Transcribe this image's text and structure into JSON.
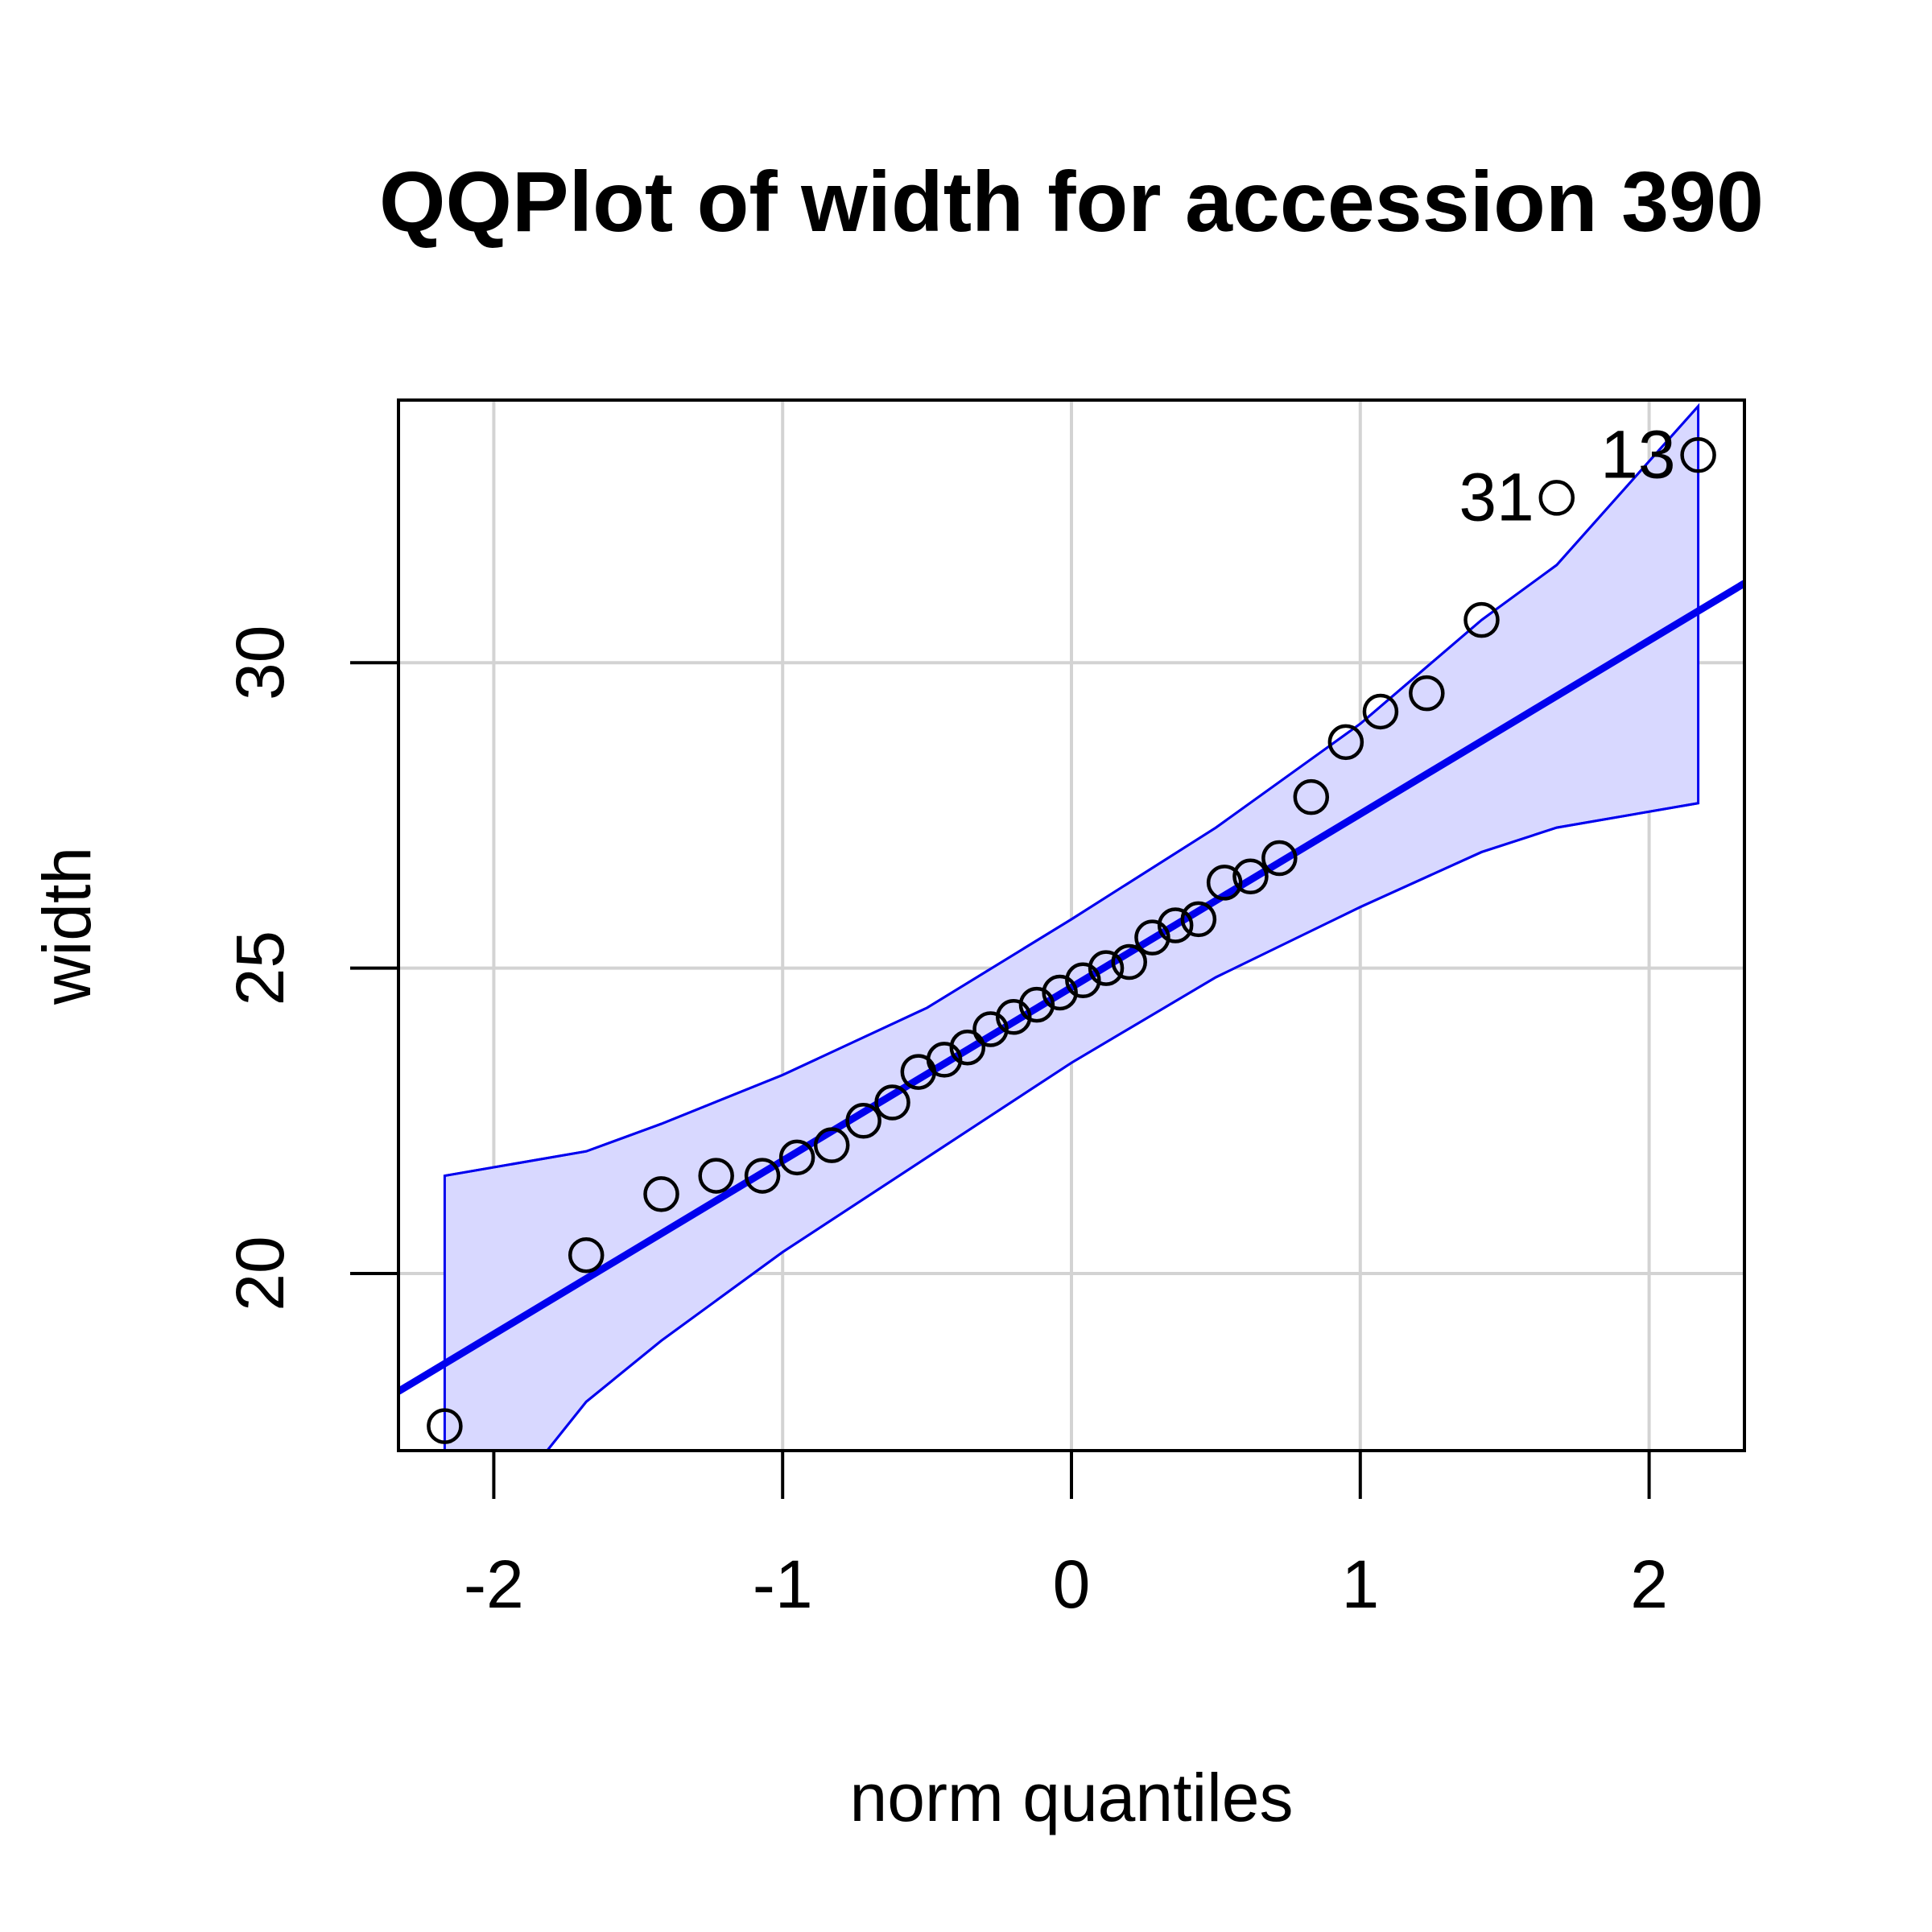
{
  "chart_data": {
    "type": "scatter",
    "title": "QQPlot of width for accession 390",
    "xlabel": "norm quantiles",
    "ylabel": "width",
    "xlim": [
      -2.33,
      2.33
    ],
    "ylim": [
      17.1,
      34.3
    ],
    "x_ticks": [
      -2,
      -1,
      0,
      1,
      2
    ],
    "y_ticks": [
      20,
      25,
      30
    ],
    "grid": true,
    "colors": {
      "points": "#000000",
      "reference_line": "#0000ee",
      "envelope_fill": "#d8d8ff",
      "envelope_line": "#0000ee",
      "grid": "#d3d3d3"
    },
    "points": [
      {
        "x": -2.17,
        "y": 17.5
      },
      {
        "x": -1.68,
        "y": 20.3
      },
      {
        "x": -1.42,
        "y": 21.3
      },
      {
        "x": -1.23,
        "y": 21.6
      },
      {
        "x": -1.07,
        "y": 21.6
      },
      {
        "x": -0.95,
        "y": 21.9
      },
      {
        "x": -0.83,
        "y": 22.1
      },
      {
        "x": -0.72,
        "y": 22.5
      },
      {
        "x": -0.62,
        "y": 22.8
      },
      {
        "x": -0.53,
        "y": 23.3
      },
      {
        "x": -0.44,
        "y": 23.5
      },
      {
        "x": -0.36,
        "y": 23.7
      },
      {
        "x": -0.28,
        "y": 24.0
      },
      {
        "x": -0.2,
        "y": 24.2
      },
      {
        "x": -0.12,
        "y": 24.4
      },
      {
        "x": -0.04,
        "y": 24.6
      },
      {
        "x": 0.04,
        "y": 24.8
      },
      {
        "x": 0.12,
        "y": 25.0
      },
      {
        "x": 0.2,
        "y": 25.1
      },
      {
        "x": 0.28,
        "y": 25.5
      },
      {
        "x": 0.36,
        "y": 25.7
      },
      {
        "x": 0.44,
        "y": 25.8
      },
      {
        "x": 0.53,
        "y": 26.4
      },
      {
        "x": 0.62,
        "y": 26.5
      },
      {
        "x": 0.72,
        "y": 26.8
      },
      {
        "x": 0.83,
        "y": 27.8
      },
      {
        "x": 0.95,
        "y": 28.7
      },
      {
        "x": 1.07,
        "y": 29.2
      },
      {
        "x": 1.23,
        "y": 29.5
      },
      {
        "x": 1.42,
        "y": 30.7
      },
      {
        "x": 1.68,
        "y": 32.7,
        "label": "31"
      },
      {
        "x": 2.17,
        "y": 33.4,
        "label": "13"
      }
    ],
    "reference_line": {
      "x1": -2.33,
      "y1": 18.07,
      "x2": 2.33,
      "y2": 31.3
    },
    "envelope_upper": [
      {
        "x": -2.17,
        "y": 21.6
      },
      {
        "x": -1.68,
        "y": 22.0
      },
      {
        "x": -1.42,
        "y": 22.45
      },
      {
        "x": -1.0,
        "y": 23.25
      },
      {
        "x": -0.5,
        "y": 24.35
      },
      {
        "x": 0.0,
        "y": 25.8
      },
      {
        "x": 0.5,
        "y": 27.3
      },
      {
        "x": 1.0,
        "y": 29.0
      },
      {
        "x": 1.42,
        "y": 30.7
      },
      {
        "x": 1.68,
        "y": 31.6
      },
      {
        "x": 2.17,
        "y": 34.2
      }
    ],
    "envelope_lower": [
      {
        "x": -2.17,
        "y": 15.0
      },
      {
        "x": -1.68,
        "y": 17.9
      },
      {
        "x": -1.42,
        "y": 18.9
      },
      {
        "x": -1.0,
        "y": 20.35
      },
      {
        "x": -0.5,
        "y": 21.9
      },
      {
        "x": 0.0,
        "y": 23.45
      },
      {
        "x": 0.5,
        "y": 24.85
      },
      {
        "x": 1.0,
        "y": 26.0
      },
      {
        "x": 1.42,
        "y": 26.9
      },
      {
        "x": 1.68,
        "y": 27.3
      },
      {
        "x": 2.17,
        "y": 27.7
      }
    ]
  }
}
